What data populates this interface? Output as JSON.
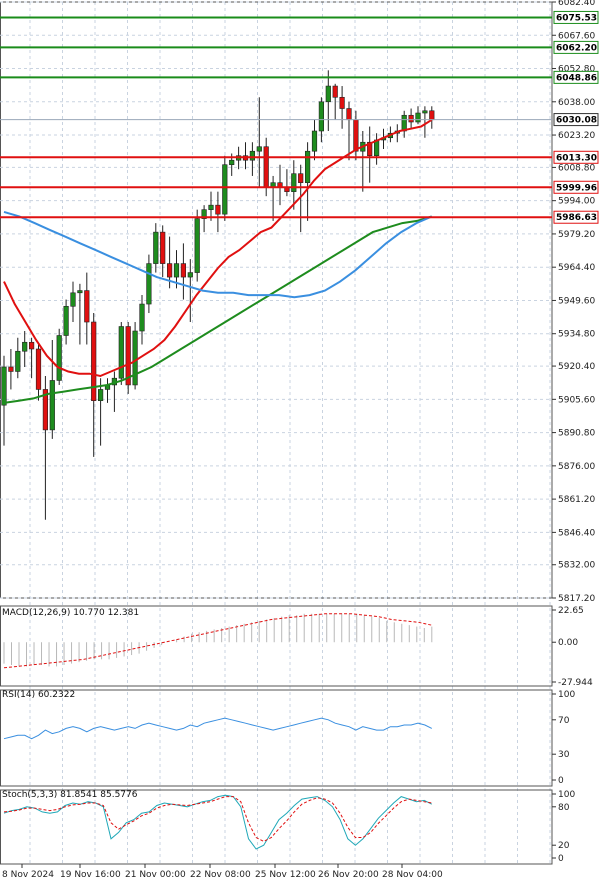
{
  "chart_data": {
    "type": "candlestick",
    "main": {
      "ylim": [
        5817.2,
        6082.4
      ],
      "y_ticks": [
        "6082.40",
        "6067.60",
        "6052.80",
        "6038.00",
        "6023.20",
        "6008.80",
        "5994.00",
        "5979.20",
        "5964.40",
        "5949.60",
        "5934.80",
        "5920.40",
        "5905.60",
        "5890.80",
        "5876.00",
        "5861.20",
        "5846.40",
        "5832.00",
        "5817.20"
      ],
      "current_price": {
        "value": 6030.08,
        "label": "6030.08"
      },
      "levels": [
        {
          "value": 6075.53,
          "label": "6075.53",
          "color": "#1a8c1a"
        },
        {
          "value": 6062.2,
          "label": "6062.20",
          "color": "#1a8c1a"
        },
        {
          "value": 6048.86,
          "label": "6048.86",
          "color": "#1a8c1a"
        },
        {
          "value": 6013.3,
          "label": "6013.30",
          "color": "#e01010"
        },
        {
          "value": 5999.96,
          "label": "5999.96",
          "color": "#e01010"
        },
        {
          "value": 5986.63,
          "label": "5986.63",
          "color": "#e01010"
        }
      ],
      "candles": [
        {
          "o": 5903,
          "h": 5925,
          "l": 5885,
          "c": 5920
        },
        {
          "o": 5920,
          "h": 5928,
          "l": 5910,
          "c": 5918
        },
        {
          "o": 5918,
          "h": 5933,
          "l": 5915,
          "c": 5927
        },
        {
          "o": 5927,
          "h": 5936,
          "l": 5920,
          "c": 5931
        },
        {
          "o": 5931,
          "h": 5933,
          "l": 5915,
          "c": 5928
        },
        {
          "o": 5928,
          "h": 5930,
          "l": 5905,
          "c": 5910
        },
        {
          "o": 5910,
          "h": 5916,
          "l": 5852,
          "c": 5892
        },
        {
          "o": 5892,
          "h": 5932,
          "l": 5888,
          "c": 5914
        },
        {
          "o": 5914,
          "h": 5937,
          "l": 5912,
          "c": 5934
        },
        {
          "o": 5934,
          "h": 5950,
          "l": 5930,
          "c": 5947
        },
        {
          "o": 5947,
          "h": 5958,
          "l": 5940,
          "c": 5953
        },
        {
          "o": 5953,
          "h": 5957,
          "l": 5930,
          "c": 5954
        },
        {
          "o": 5954,
          "h": 5962,
          "l": 5930,
          "c": 5940
        },
        {
          "o": 5940,
          "h": 5944,
          "l": 5880,
          "c": 5905
        },
        {
          "o": 5905,
          "h": 5915,
          "l": 5885,
          "c": 5910
        },
        {
          "o": 5910,
          "h": 5915,
          "l": 5904,
          "c": 5912
        },
        {
          "o": 5912,
          "h": 5918,
          "l": 5900,
          "c": 5915
        },
        {
          "o": 5915,
          "h": 5940,
          "l": 5912,
          "c": 5938
        },
        {
          "o": 5938,
          "h": 5940,
          "l": 5908,
          "c": 5912
        },
        {
          "o": 5912,
          "h": 5940,
          "l": 5910,
          "c": 5936
        },
        {
          "o": 5936,
          "h": 5952,
          "l": 5930,
          "c": 5948
        },
        {
          "o": 5948,
          "h": 5970,
          "l": 5944,
          "c": 5966
        },
        {
          "o": 5966,
          "h": 5984,
          "l": 5962,
          "c": 5980
        },
        {
          "o": 5980,
          "h": 5983,
          "l": 5960,
          "c": 5966
        },
        {
          "o": 5966,
          "h": 5978,
          "l": 5955,
          "c": 5960
        },
        {
          "o": 5960,
          "h": 5972,
          "l": 5955,
          "c": 5966
        },
        {
          "o": 5966,
          "h": 5975,
          "l": 5950,
          "c": 5960
        },
        {
          "o": 5960,
          "h": 5968,
          "l": 5940,
          "c": 5962
        },
        {
          "o": 5962,
          "h": 5990,
          "l": 5958,
          "c": 5986
        },
        {
          "o": 5986,
          "h": 5992,
          "l": 5980,
          "c": 5990
        },
        {
          "o": 5990,
          "h": 5998,
          "l": 5985,
          "c": 5992
        },
        {
          "o": 5992,
          "h": 5998,
          "l": 5980,
          "c": 5988
        },
        {
          "o": 5988,
          "h": 6014,
          "l": 5985,
          "c": 6010
        },
        {
          "o": 6010,
          "h": 6015,
          "l": 6005,
          "c": 6012
        },
        {
          "o": 6012,
          "h": 6018,
          "l": 6008,
          "c": 6014
        },
        {
          "o": 6014,
          "h": 6020,
          "l": 6008,
          "c": 6012
        },
        {
          "o": 6012,
          "h": 6020,
          "l": 6005,
          "c": 6016
        },
        {
          "o": 6016,
          "h": 6040,
          "l": 6000,
          "c": 6018
        },
        {
          "o": 6018,
          "h": 6022,
          "l": 5996,
          "c": 6000
        },
        {
          "o": 6000,
          "h": 6005,
          "l": 5985,
          "c": 6002
        },
        {
          "o": 6002,
          "h": 6010,
          "l": 5992,
          "c": 6000
        },
        {
          "o": 6000,
          "h": 6008,
          "l": 5996,
          "c": 5998
        },
        {
          "o": 5998,
          "h": 6012,
          "l": 5990,
          "c": 6006
        },
        {
          "o": 6006,
          "h": 6010,
          "l": 5980,
          "c": 6002
        },
        {
          "o": 6002,
          "h": 6020,
          "l": 5985,
          "c": 6016
        },
        {
          "o": 6016,
          "h": 6030,
          "l": 6012,
          "c": 6025
        },
        {
          "o": 6025,
          "h": 6040,
          "l": 6020,
          "c": 6038
        },
        {
          "o": 6038,
          "h": 6052,
          "l": 6025,
          "c": 6045
        },
        {
          "o": 6045,
          "h": 6046,
          "l": 6030,
          "c": 6040
        },
        {
          "o": 6040,
          "h": 6045,
          "l": 6026,
          "c": 6035
        },
        {
          "o": 6035,
          "h": 6038,
          "l": 6012,
          "c": 6030
        },
        {
          "o": 6030,
          "h": 6034,
          "l": 6012,
          "c": 6016
        },
        {
          "o": 6016,
          "h": 6025,
          "l": 5998,
          "c": 6020
        },
        {
          "o": 6020,
          "h": 6027,
          "l": 6002,
          "c": 6014
        },
        {
          "o": 6014,
          "h": 6024,
          "l": 6010,
          "c": 6021
        },
        {
          "o": 6021,
          "h": 6026,
          "l": 6017,
          "c": 6022
        },
        {
          "o": 6022,
          "h": 6027,
          "l": 6020,
          "c": 6024
        },
        {
          "o": 6024,
          "h": 6028,
          "l": 6020,
          "c": 6025
        },
        {
          "o": 6025,
          "h": 6034,
          "l": 6022,
          "c": 6032
        },
        {
          "o": 6032,
          "h": 6035,
          "l": 6026,
          "c": 6029
        },
        {
          "o": 6029,
          "h": 6036,
          "l": 6028,
          "c": 6033
        },
        {
          "o": 6033,
          "h": 6036,
          "l": 6022,
          "c": 6034
        },
        {
          "o": 6034,
          "h": 6036,
          "l": 6026,
          "c": 6030
        }
      ],
      "moving_averages": [
        {
          "color": "#e01010",
          "values": [
            5958,
            5948,
            5940,
            5932,
            5925,
            5920,
            5918,
            5917,
            5917,
            5916,
            5918,
            5920,
            5922,
            5925,
            5928,
            5932,
            5938,
            5945,
            5952,
            5958,
            5964,
            5969,
            5972,
            5976,
            5980,
            5982,
            5987,
            5992,
            5997,
            6003,
            6008,
            6011,
            6014,
            6017,
            6019,
            6021,
            6023,
            6025,
            6026,
            6027,
            6030
          ]
        },
        {
          "color": "#1e8c1e",
          "values": [
            5904,
            5905,
            5906,
            5908,
            5909,
            5910,
            5911,
            5912,
            5914,
            5917,
            5920,
            5924,
            5928,
            5932,
            5936,
            5940,
            5944,
            5948,
            5952,
            5956,
            5960,
            5964,
            5968,
            5972,
            5976,
            5980,
            5982,
            5984,
            5985,
            5987
          ]
        },
        {
          "color": "#3a8fe0",
          "values": [
            5989,
            5987,
            5984,
            5981,
            5978,
            5975,
            5972,
            5969,
            5966,
            5963,
            5960,
            5958,
            5956,
            5954,
            5953,
            5953,
            5952,
            5952,
            5952,
            5951,
            5952,
            5954,
            5958,
            5963,
            5969,
            5975,
            5980,
            5984,
            5987
          ]
        }
      ]
    },
    "macd": {
      "label": "MACD(12,26,9) 10.770 12.381",
      "y_ticks": [
        "22.65",
        "0.00",
        "-27.944"
      ],
      "ylim": [
        -27.944,
        22.65
      ],
      "histogram": [
        -15,
        -16,
        -17,
        -17,
        -16,
        -16,
        -17,
        -17,
        -16,
        -15,
        -14,
        -13,
        -12,
        -12,
        -12,
        -11,
        -10,
        -9,
        -8,
        -6,
        -4,
        -2,
        0,
        2,
        4,
        6,
        7,
        8,
        9,
        10,
        11,
        12,
        13,
        14,
        15,
        16,
        17,
        18,
        19,
        19,
        20,
        20,
        20,
        20,
        20,
        20,
        20,
        20,
        19,
        18,
        17,
        15,
        14,
        13,
        12,
        11,
        10,
        11
      ],
      "signal": [
        -18,
        -17,
        -16,
        -15,
        -14,
        -13,
        -12,
        -10,
        -8,
        -6,
        -4,
        -2,
        0,
        2,
        4,
        6,
        8,
        10,
        12,
        14,
        16,
        17,
        18,
        19,
        20,
        20,
        20,
        19,
        18,
        16,
        15,
        14,
        12
      ]
    },
    "rsi": {
      "label": "RSI(14) 60.2322",
      "y_ticks": [
        "100",
        "70",
        "30",
        "0"
      ],
      "ylim": [
        0,
        100
      ],
      "values": [
        48,
        50,
        52,
        52,
        48,
        52,
        58,
        54,
        56,
        60,
        62,
        60,
        56,
        60,
        62,
        60,
        58,
        60,
        62,
        60,
        64,
        66,
        64,
        62,
        60,
        58,
        60,
        64,
        62,
        66,
        68,
        70,
        72,
        70,
        68,
        66,
        64,
        62,
        60,
        58,
        60,
        62,
        64,
        66,
        68,
        70,
        72,
        70,
        66,
        64,
        62,
        58,
        62,
        60,
        58,
        58,
        62,
        62,
        64,
        64,
        66,
        64,
        60
      ]
    },
    "stoch": {
      "label": "Stoch(5,3,3) 81.8541 85.5776",
      "y_ticks": [
        "100",
        "80",
        "20",
        "0"
      ],
      "ylim": [
        0,
        100
      ],
      "k": [
        70,
        74,
        76,
        80,
        78,
        72,
        70,
        72,
        82,
        86,
        84,
        88,
        86,
        80,
        30,
        40,
        55,
        60,
        70,
        72,
        82,
        86,
        84,
        82,
        80,
        84,
        88,
        90,
        96,
        98,
        96,
        80,
        30,
        14,
        20,
        40,
        60,
        70,
        82,
        92,
        94,
        96,
        90,
        80,
        60,
        30,
        20,
        30,
        46,
        62,
        74,
        86,
        96,
        92,
        88,
        90,
        84
      ],
      "d": [
        72,
        73,
        75,
        78,
        78,
        76,
        74,
        76,
        80,
        83,
        84,
        86,
        86,
        82,
        55,
        45,
        52,
        58,
        66,
        70,
        78,
        82,
        84,
        83,
        82,
        84,
        86,
        88,
        92,
        96,
        96,
        88,
        55,
        32,
        26,
        32,
        46,
        58,
        72,
        84,
        90,
        94,
        92,
        86,
        70,
        48,
        32,
        32,
        40,
        54,
        66,
        78,
        88,
        92,
        90,
        88,
        86
      ]
    },
    "x_ticks": [
      "8 Nov 2024",
      "19 Nov 16:00",
      "21 Nov 00:00",
      "22 Nov 08:00",
      "25 Nov 12:00",
      "26 Nov 20:00",
      "28 Nov 04:00"
    ],
    "colors": {
      "bull": "#1e8c1e",
      "bear": "#e01010",
      "grid": "#c9d3e0",
      "axis": "#333333"
    }
  }
}
